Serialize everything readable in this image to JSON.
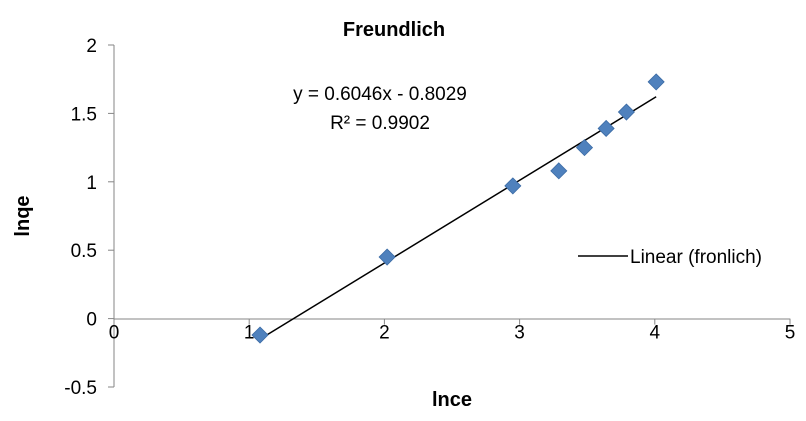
{
  "chart_data": {
    "type": "scatter",
    "title": "Freundlich",
    "xlabel": "lnce",
    "ylabel": "lnqe",
    "xlim": [
      0,
      5
    ],
    "ylim": [
      -0.5,
      2
    ],
    "x_ticks": [
      "0",
      "1",
      "2",
      "3",
      "4",
      "5"
    ],
    "y_ticks": [
      "-0.5",
      "0",
      "0.5",
      "1",
      "1.5",
      "2"
    ],
    "grid": false,
    "series": [
      {
        "marker": "diamond",
        "color": "#4F81BD",
        "points": [
          {
            "x": 1.08,
            "y": -0.12
          },
          {
            "x": 2.02,
            "y": 0.45
          },
          {
            "x": 2.95,
            "y": 0.97
          },
          {
            "x": 3.29,
            "y": 1.08
          },
          {
            "x": 3.48,
            "y": 1.25
          },
          {
            "x": 3.64,
            "y": 1.39
          },
          {
            "x": 3.79,
            "y": 1.51
          },
          {
            "x": 4.01,
            "y": 1.73
          }
        ]
      }
    ],
    "trendline": {
      "name": "Linear (fronlich)",
      "slope": 0.6046,
      "intercept": -0.8029,
      "x_range": [
        1.08,
        4.01
      ],
      "color": "#000000"
    },
    "annotations": {
      "equation": "y = 0.6046x - 0.8029",
      "r_squared": "R² = 0.9902"
    },
    "legend": {
      "position": "right",
      "entries": [
        "Linear (fronlich)"
      ]
    }
  }
}
